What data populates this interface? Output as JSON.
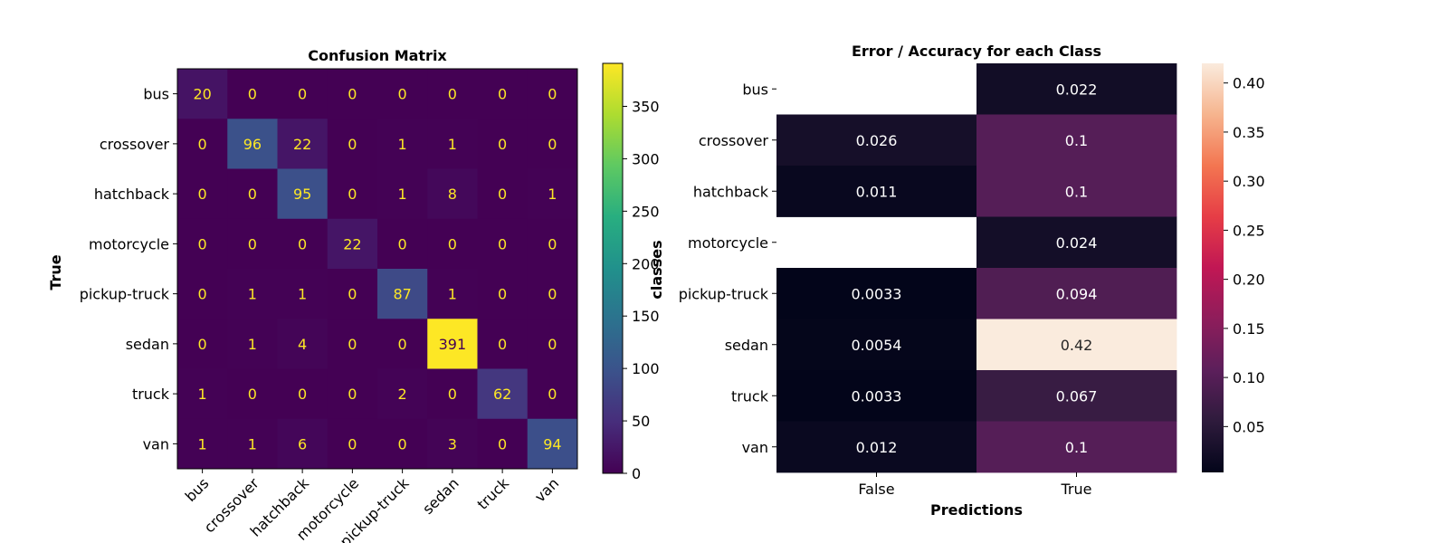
{
  "chart_data": [
    {
      "type": "heatmap",
      "title": "Confusion Matrix",
      "xlabel": "",
      "ylabel": "True",
      "rows": [
        "bus",
        "crossover",
        "hatchback",
        "motorcycle",
        "pickup-truck",
        "sedan",
        "truck",
        "van"
      ],
      "columns": [
        "bus",
        "crossover",
        "hatchback",
        "motorcycle",
        "pickup-truck",
        "sedan",
        "truck",
        "van"
      ],
      "values": [
        [
          20,
          0,
          0,
          0,
          0,
          0,
          0,
          0
        ],
        [
          0,
          96,
          22,
          0,
          1,
          1,
          0,
          0
        ],
        [
          0,
          0,
          95,
          0,
          1,
          8,
          0,
          1
        ],
        [
          0,
          0,
          0,
          22,
          0,
          0,
          0,
          0
        ],
        [
          0,
          1,
          1,
          0,
          87,
          1,
          0,
          0
        ],
        [
          0,
          1,
          4,
          0,
          0,
          391,
          0,
          0
        ],
        [
          1,
          0,
          0,
          0,
          2,
          0,
          62,
          0
        ],
        [
          1,
          1,
          6,
          0,
          0,
          3,
          0,
          94
        ]
      ],
      "colormap": "viridis",
      "colorbar": {
        "range": [
          0,
          391
        ],
        "ticks": [
          0,
          50,
          100,
          150,
          200,
          250,
          300,
          350
        ]
      }
    },
    {
      "type": "heatmap",
      "title": "Error / Accuracy for each Class",
      "xlabel": "Predictions",
      "ylabel": "classes",
      "rows": [
        "bus",
        "crossover",
        "hatchback",
        "motorcycle",
        "pickup-truck",
        "sedan",
        "truck",
        "van"
      ],
      "columns": [
        "False",
        "True"
      ],
      "values": [
        [
          null,
          0.022
        ],
        [
          0.026,
          0.1
        ],
        [
          0.011,
          0.1
        ],
        [
          null,
          0.024
        ],
        [
          0.0033,
          0.094
        ],
        [
          0.0054,
          0.42
        ],
        [
          0.0033,
          0.067
        ],
        [
          0.012,
          0.1
        ]
      ],
      "display": [
        [
          "",
          "0.022"
        ],
        [
          "0.026",
          "0.1"
        ],
        [
          "0.011",
          "0.1"
        ],
        [
          "",
          "0.024"
        ],
        [
          "0.0033",
          "0.094"
        ],
        [
          "0.0054",
          "0.42"
        ],
        [
          "0.0033",
          "0.067"
        ],
        [
          "0.012",
          "0.1"
        ]
      ],
      "colormap": "rocket",
      "colorbar": {
        "range": [
          0.0033,
          0.42
        ],
        "ticks": [
          0.05,
          0.1,
          0.15,
          0.2,
          0.25,
          0.3,
          0.35,
          0.4
        ]
      }
    }
  ]
}
